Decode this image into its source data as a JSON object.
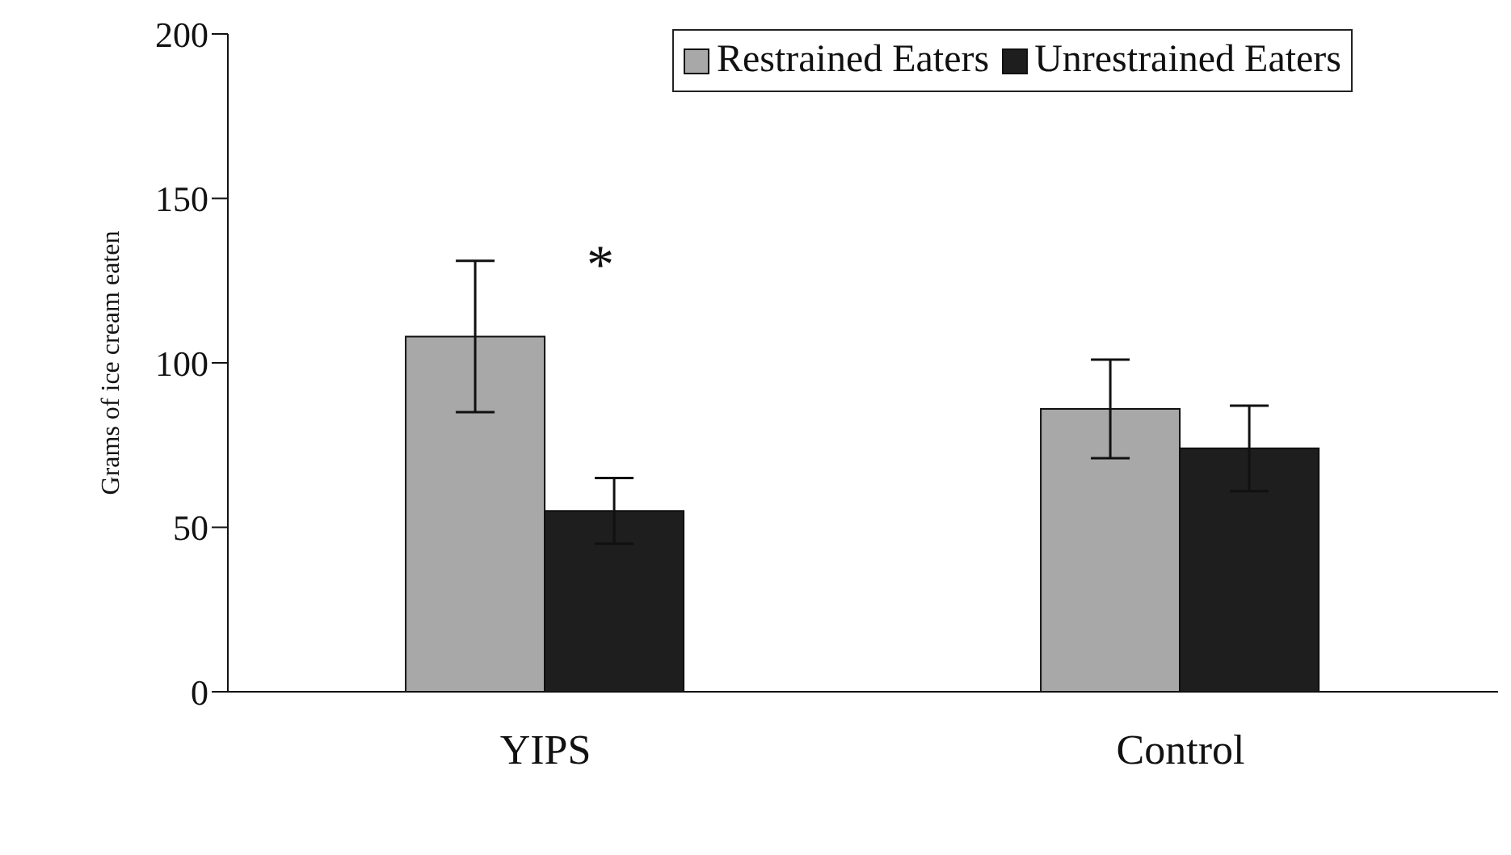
{
  "chart_data": {
    "type": "bar",
    "ylabel": "Grams of ice cream eaten",
    "categories": [
      "YIPS",
      "Control"
    ],
    "series": [
      {
        "name": "Restrained Eaters",
        "color": "#a8a8a8",
        "values": [
          108,
          86
        ],
        "errors": [
          23,
          15
        ]
      },
      {
        "name": "Unrestrained Eaters",
        "color": "#1e1e1e",
        "values": [
          55,
          74
        ],
        "errors": [
          10,
          13
        ]
      }
    ],
    "ylim": [
      0,
      200
    ],
    "yticks": [
      0,
      50,
      100,
      150,
      200
    ],
    "grid": false,
    "legend": "top right",
    "annotations": [
      "*"
    ]
  }
}
